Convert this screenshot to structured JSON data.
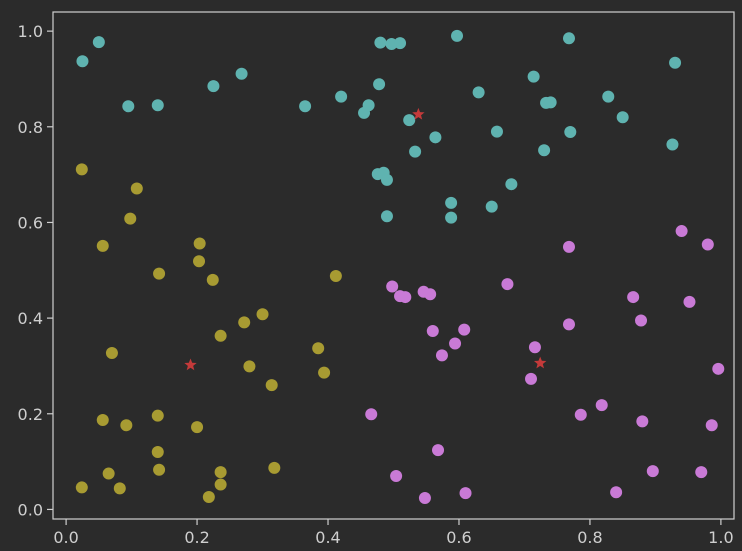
{
  "chart_data": {
    "type": "scatter",
    "title": "",
    "xlabel": "",
    "ylabel": "",
    "xlim": [
      -0.02,
      1.02
    ],
    "ylim": [
      -0.02,
      1.04
    ],
    "grid": false,
    "x_ticks": [
      "0.0",
      "0.2",
      "0.4",
      "0.6",
      "0.8",
      "1.0"
    ],
    "y_ticks": [
      "0.0",
      "0.2",
      "0.4",
      "0.6",
      "0.8",
      "1.0"
    ],
    "x_tick_values": [
      0.0,
      0.2,
      0.4,
      0.6,
      0.8,
      1.0
    ],
    "y_tick_values": [
      0.0,
      0.2,
      0.4,
      0.6,
      0.8,
      1.0
    ],
    "colors": {
      "background": "#2b2b2b",
      "axes": "#cfcfcf",
      "cluster_teal": "#5fb3b0",
      "cluster_olive": "#a89b32",
      "cluster_violet": "#c97ad6",
      "centroid": "#c43a3a"
    },
    "series": [
      {
        "color_key": "cluster_teal",
        "marker": "circle",
        "points": [
          [
            0.025,
            0.937
          ],
          [
            0.05,
            0.977
          ],
          [
            0.095,
            0.843
          ],
          [
            0.14,
            0.845
          ],
          [
            0.225,
            0.885
          ],
          [
            0.268,
            0.911
          ],
          [
            0.365,
            0.843
          ],
          [
            0.42,
            0.863
          ],
          [
            0.455,
            0.829
          ],
          [
            0.462,
            0.845
          ],
          [
            0.478,
            0.889
          ],
          [
            0.48,
            0.976
          ],
          [
            0.497,
            0.973
          ],
          [
            0.51,
            0.975
          ],
          [
            0.597,
            0.99
          ],
          [
            0.524,
            0.814
          ],
          [
            0.533,
            0.748
          ],
          [
            0.564,
            0.778
          ],
          [
            0.476,
            0.701
          ],
          [
            0.485,
            0.704
          ],
          [
            0.49,
            0.689
          ],
          [
            0.49,
            0.613
          ],
          [
            0.588,
            0.641
          ],
          [
            0.588,
            0.61
          ],
          [
            0.63,
            0.872
          ],
          [
            0.65,
            0.633
          ],
          [
            0.658,
            0.79
          ],
          [
            0.68,
            0.68
          ],
          [
            0.714,
            0.905
          ],
          [
            0.73,
            0.751
          ],
          [
            0.733,
            0.85
          ],
          [
            0.74,
            0.851
          ],
          [
            0.768,
            0.985
          ],
          [
            0.77,
            0.789
          ],
          [
            0.828,
            0.863
          ],
          [
            0.85,
            0.82
          ],
          [
            0.926,
            0.763
          ],
          [
            0.93,
            0.934
          ]
        ]
      },
      {
        "color_key": "cluster_olive",
        "marker": "circle",
        "points": [
          [
            0.024,
            0.711
          ],
          [
            0.108,
            0.671
          ],
          [
            0.098,
            0.608
          ],
          [
            0.056,
            0.551
          ],
          [
            0.142,
            0.493
          ],
          [
            0.204,
            0.556
          ],
          [
            0.203,
            0.519
          ],
          [
            0.224,
            0.48
          ],
          [
            0.236,
            0.363
          ],
          [
            0.272,
            0.391
          ],
          [
            0.3,
            0.408
          ],
          [
            0.412,
            0.488
          ],
          [
            0.385,
            0.337
          ],
          [
            0.394,
            0.286
          ],
          [
            0.07,
            0.327
          ],
          [
            0.28,
            0.299
          ],
          [
            0.314,
            0.26
          ],
          [
            0.056,
            0.187
          ],
          [
            0.092,
            0.176
          ],
          [
            0.14,
            0.196
          ],
          [
            0.2,
            0.172
          ],
          [
            0.14,
            0.12
          ],
          [
            0.142,
            0.083
          ],
          [
            0.065,
            0.075
          ],
          [
            0.082,
            0.044
          ],
          [
            0.024,
            0.046
          ],
          [
            0.236,
            0.078
          ],
          [
            0.236,
            0.052
          ],
          [
            0.218,
            0.026
          ],
          [
            0.318,
            0.087
          ]
        ]
      },
      {
        "color_key": "cluster_violet",
        "marker": "circle",
        "points": [
          [
            0.498,
            0.466
          ],
          [
            0.51,
            0.446
          ],
          [
            0.518,
            0.444
          ],
          [
            0.546,
            0.455
          ],
          [
            0.556,
            0.45
          ],
          [
            0.56,
            0.373
          ],
          [
            0.574,
            0.322
          ],
          [
            0.594,
            0.347
          ],
          [
            0.608,
            0.376
          ],
          [
            0.674,
            0.471
          ],
          [
            0.716,
            0.339
          ],
          [
            0.71,
            0.273
          ],
          [
            0.768,
            0.549
          ],
          [
            0.768,
            0.387
          ],
          [
            0.866,
            0.444
          ],
          [
            0.878,
            0.395
          ],
          [
            0.94,
            0.582
          ],
          [
            0.952,
            0.434
          ],
          [
            0.98,
            0.554
          ],
          [
            0.996,
            0.294
          ],
          [
            0.466,
            0.199
          ],
          [
            0.568,
            0.124
          ],
          [
            0.504,
            0.07
          ],
          [
            0.548,
            0.024
          ],
          [
            0.61,
            0.034
          ],
          [
            0.786,
            0.198
          ],
          [
            0.818,
            0.218
          ],
          [
            0.88,
            0.184
          ],
          [
            0.896,
            0.08
          ],
          [
            0.84,
            0.036
          ],
          [
            0.97,
            0.078
          ],
          [
            0.986,
            0.176
          ]
        ]
      },
      {
        "color_key": "centroid",
        "marker": "star",
        "points": [
          [
            0.538,
            0.826
          ],
          [
            0.19,
            0.302
          ],
          [
            0.724,
            0.306
          ]
        ]
      }
    ]
  }
}
